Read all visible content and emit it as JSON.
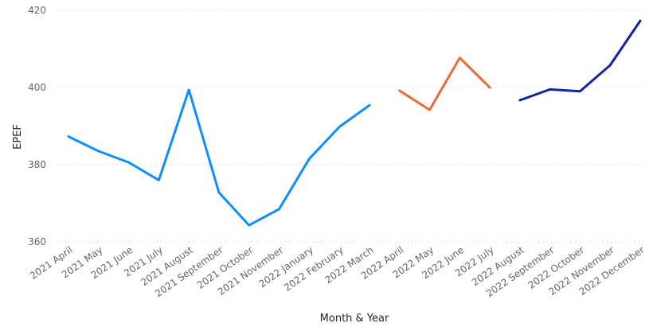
{
  "chart_data": {
    "type": "line",
    "xlabel": "Month & Year",
    "ylabel": "EPEF",
    "ylim": [
      360,
      420
    ],
    "yticks": [
      360,
      380,
      400,
      420
    ],
    "grid": true,
    "categories": [
      "2021 April",
      "2021 May",
      "2021 June",
      "2021 July",
      "2021 August",
      "2021 September",
      "2021 October",
      "2021 November",
      "2022 January",
      "2022 February",
      "2022 March",
      "2022 April",
      "2022 May",
      "2022 June",
      "2022 July",
      "2022 August",
      "2022 September",
      "2022 October",
      "2022 November",
      "2022 December"
    ],
    "series": [
      {
        "color": "#118DFF",
        "values": [
          387.3,
          383.5,
          380.6,
          376.0,
          399.4,
          372.8,
          364.3,
          368.5,
          381.5,
          389.8,
          395.4,
          null,
          null,
          null,
          null,
          null,
          null,
          null,
          null,
          null
        ]
      },
      {
        "color": "#E66C37",
        "values": [
          null,
          null,
          null,
          null,
          null,
          null,
          null,
          null,
          null,
          null,
          null,
          399.2,
          394.2,
          407.7,
          400.0,
          null,
          null,
          null,
          null,
          null
        ]
      },
      {
        "color": "#12239E",
        "values": [
          null,
          null,
          null,
          null,
          null,
          null,
          null,
          null,
          null,
          null,
          null,
          null,
          null,
          null,
          null,
          396.7,
          399.5,
          399.0,
          405.8,
          417.3
        ]
      }
    ]
  }
}
